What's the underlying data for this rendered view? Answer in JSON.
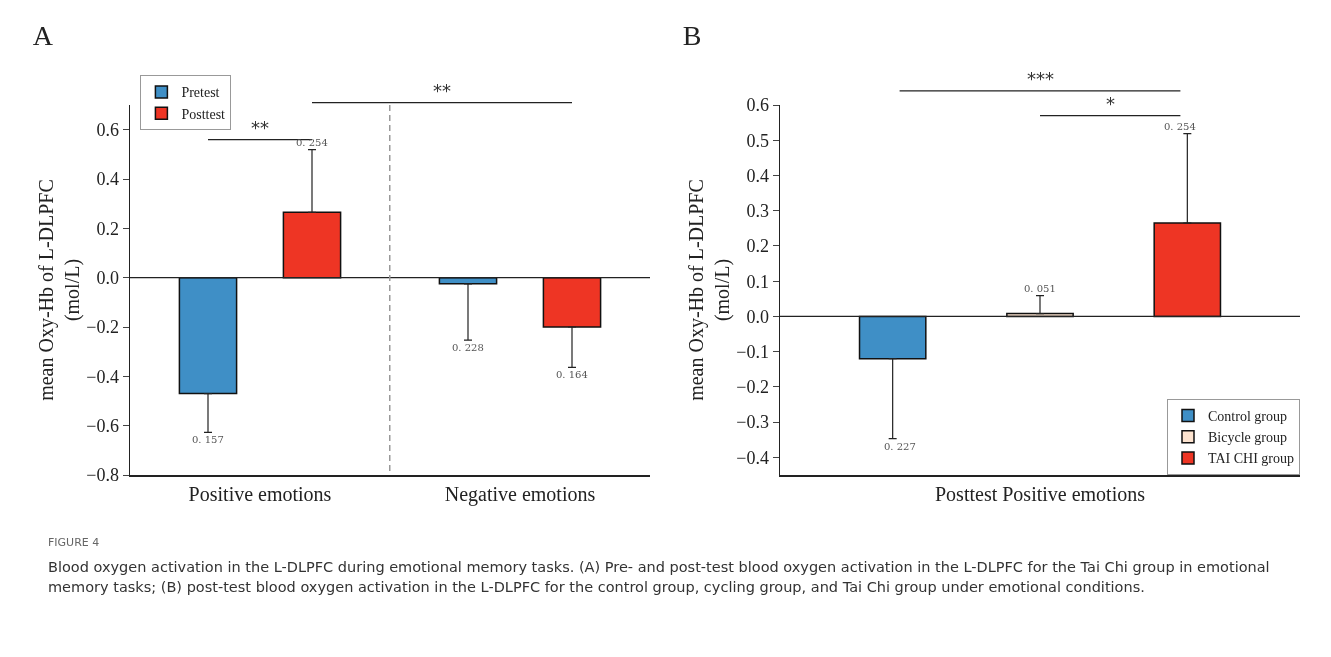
{
  "chart_data": [
    {
      "type": "bar",
      "title": "A",
      "ylabel": "mean Oxy-Hb of L-DLPFC\n(mol/L)",
      "categories": [
        "Positive emotions",
        "Negative emotions"
      ],
      "series": [
        {
          "name": "Pretest",
          "color": "#3f8fc6",
          "values": [
            -0.47,
            -0.025
          ],
          "errors": [
            [
              -0.627,
              -0.47
            ],
            [
              -0.253,
              -0.025
            ]
          ]
        },
        {
          "name": "Posttest",
          "color": "#ee3524",
          "values": [
            0.265,
            -0.2
          ],
          "errors": [
            [
              0.265,
              0.519
            ],
            [
              -0.364,
              -0.2
            ]
          ]
        }
      ],
      "ylim": [
        -0.8,
        0.7
      ],
      "yticks": [
        -0.8,
        -0.6,
        -0.4,
        -0.2,
        {
          "value": 0,
          "label": "0.0"
        },
        0.2,
        0.4,
        0.6
      ],
      "grid": false,
      "legend": "top left",
      "ref_lines": [
        {
          "axis": "y",
          "value": 0,
          "color": "#222222",
          "line_style": "solid"
        }
      ],
      "annotations": [
        "**",
        "**",
        "0. 157",
        "0. 228",
        "0. 254",
        "0. 164",
        "FIGURE 4",
        "Blood oxygen activation in the L-DLPFC during emotional memory tasks. (A) Pre- and post-test blood oxygen activation in the L-DLPFC for the Tai Chi group in emotional memory tasks; (B) post-test blood oxygen activation in the L-DLPFC for the control group, cycling group, and Tai Chi group under emotional conditions."
      ]
    },
    {
      "type": "bar",
      "title": "B",
      "ylabel": "mean Oxy-Hb of L-DLPFC\n(mol/L)",
      "categories": [
        "Posttest Positive emotions"
      ],
      "series": [
        {
          "name": "Control group",
          "color": "#3f8fc6",
          "values": [
            -0.12
          ],
          "errors": [
            [
              -0.347,
              -0.12
            ]
          ]
        },
        {
          "name": "Bicycle group",
          "color": "#fde3cf",
          "values": [
            0.008
          ],
          "errors": [
            [
              0.008,
              0.059
            ]
          ]
        },
        {
          "name": "TAI CHI group",
          "color": "#ee3524",
          "values": [
            0.265
          ],
          "errors": [
            [
              0.265,
              0.519
            ]
          ]
        }
      ],
      "ylim": [
        -0.45,
        0.6
      ],
      "yticks": [
        -0.4,
        -0.3,
        -0.2,
        -0.1,
        {
          "value": 0,
          "label": "0.0"
        },
        0.1,
        0.2,
        0.3,
        0.4,
        0.5,
        0.6
      ],
      "grid": false,
      "legend": "bottom right",
      "ref_lines": [
        {
          "axis": "y",
          "value": 0,
          "color": "#222222",
          "line_style": "solid"
        }
      ],
      "annotations": [
        "***",
        "*",
        "0. 227",
        "0. 051",
        "0. 254"
      ]
    }
  ]
}
